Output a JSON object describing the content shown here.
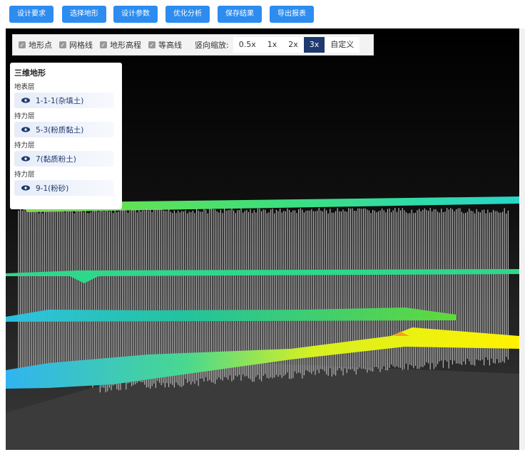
{
  "toolbar": {
    "buttons": [
      "设计要求",
      "选择地形",
      "设计参数",
      "优化分析",
      "保存结果",
      "导出报表"
    ]
  },
  "view_options": {
    "checkboxes": [
      {
        "label": "地形点",
        "checked": true
      },
      {
        "label": "网格线",
        "checked": true
      },
      {
        "label": "地形高程",
        "checked": true
      },
      {
        "label": "等高线",
        "checked": true
      }
    ],
    "scale_label": "竖向缩放:",
    "scale_options": [
      "0.5x",
      "1x",
      "2x",
      "3x",
      "自定义"
    ],
    "selected_scale_index": 3
  },
  "layer_panel": {
    "title": "三维地形",
    "layers": [
      {
        "group": "地表层",
        "name": "1-1-1(杂填土)"
      },
      {
        "group": "持力层",
        "name": "5-3(粉质黏土)"
      },
      {
        "group": "持力层",
        "name": "7(黏质粉土)"
      },
      {
        "group": "持力层",
        "name": "9-1(粉砂)"
      }
    ]
  }
}
